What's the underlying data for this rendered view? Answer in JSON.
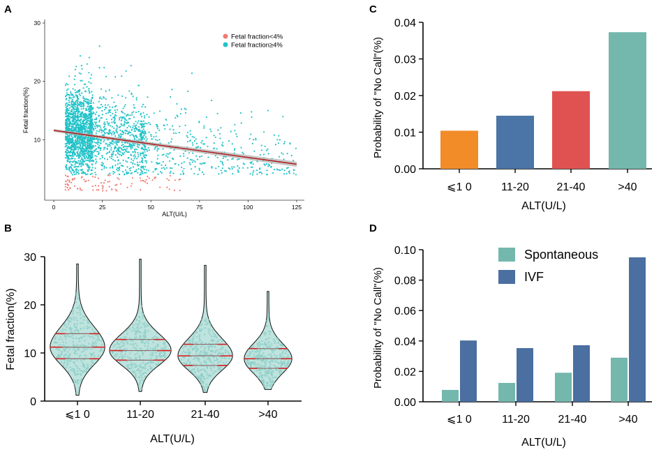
{
  "panels": {
    "a": "A",
    "b": "B",
    "c": "C",
    "d": "D"
  },
  "chart_data": [
    {
      "panel": "A",
      "type": "scatter",
      "xlabel": "ALT(U/L)",
      "ylabel": "Fetal fraction(%)",
      "xlim": [
        0,
        125
      ],
      "ylim": [
        0,
        30
      ],
      "xticks": [
        0,
        25,
        50,
        75,
        100,
        125
      ],
      "yticks": [
        10,
        20,
        30
      ],
      "legend": [
        {
          "label": "Fetal fraction<4%",
          "color": "#f07c74"
        },
        {
          "label": "Fetal fraction≥4%",
          "color": "#22c3c8"
        }
      ],
      "trend_line": {
        "x": [
          0,
          125
        ],
        "y": [
          11.6,
          5.8
        ],
        "color": "#b22222"
      }
    },
    {
      "panel": "B",
      "type": "violin",
      "xlabel": "ALT(U/L)",
      "ylabel": "Fetal fraction(%)",
      "ylim": [
        0,
        30
      ],
      "yticks": [
        0,
        10,
        20,
        30
      ],
      "categories": [
        "⩽1 0",
        "11-20",
        "21-40",
        ">40"
      ],
      "groups": [
        {
          "min": 1.2,
          "max": 28.5,
          "q1": 8.8,
          "median": 11.2,
          "q3": 14.0
        },
        {
          "min": 2.0,
          "max": 29.5,
          "q1": 8.5,
          "median": 10.5,
          "q3": 12.8
        },
        {
          "min": 1.8,
          "max": 28.2,
          "q1": 7.4,
          "median": 9.4,
          "q3": 11.8
        },
        {
          "min": 2.4,
          "max": 22.8,
          "q1": 6.8,
          "median": 8.8,
          "q3": 10.9
        }
      ]
    },
    {
      "panel": "C",
      "type": "bar",
      "xlabel": "ALT(U/L)",
      "ylabel": "Probability of \"No Call\"(%)",
      "ylim": [
        0,
        0.04
      ],
      "yticks": [
        "0.00",
        "0.01",
        "0.02",
        "0.03",
        "0.04"
      ],
      "categories": [
        "⩽1 0",
        "11-20",
        "21-40",
        ">40"
      ],
      "values": [
        0.0104,
        0.0145,
        0.0212,
        0.0373
      ],
      "colors": [
        "#f28c28",
        "#4a75a6",
        "#e05252",
        "#74b7ad"
      ]
    },
    {
      "panel": "D",
      "type": "bar",
      "xlabel": "ALT(U/L)",
      "ylabel": "Probability of \"No Call\"(%)",
      "ylim": [
        0,
        0.1
      ],
      "yticks": [
        "0.00",
        "0.02",
        "0.04",
        "0.06",
        "0.08",
        "0.10"
      ],
      "categories": [
        "⩽1 0",
        "11-20",
        "21-40",
        ">40"
      ],
      "series": [
        {
          "name": "Spontaneous",
          "color": "#74b7ad",
          "values": [
            0.0078,
            0.0124,
            0.0191,
            0.029
          ]
        },
        {
          "name": "IVF",
          "color": "#4a6fa0",
          "values": [
            0.0403,
            0.0353,
            0.0372,
            0.095
          ]
        }
      ]
    }
  ]
}
